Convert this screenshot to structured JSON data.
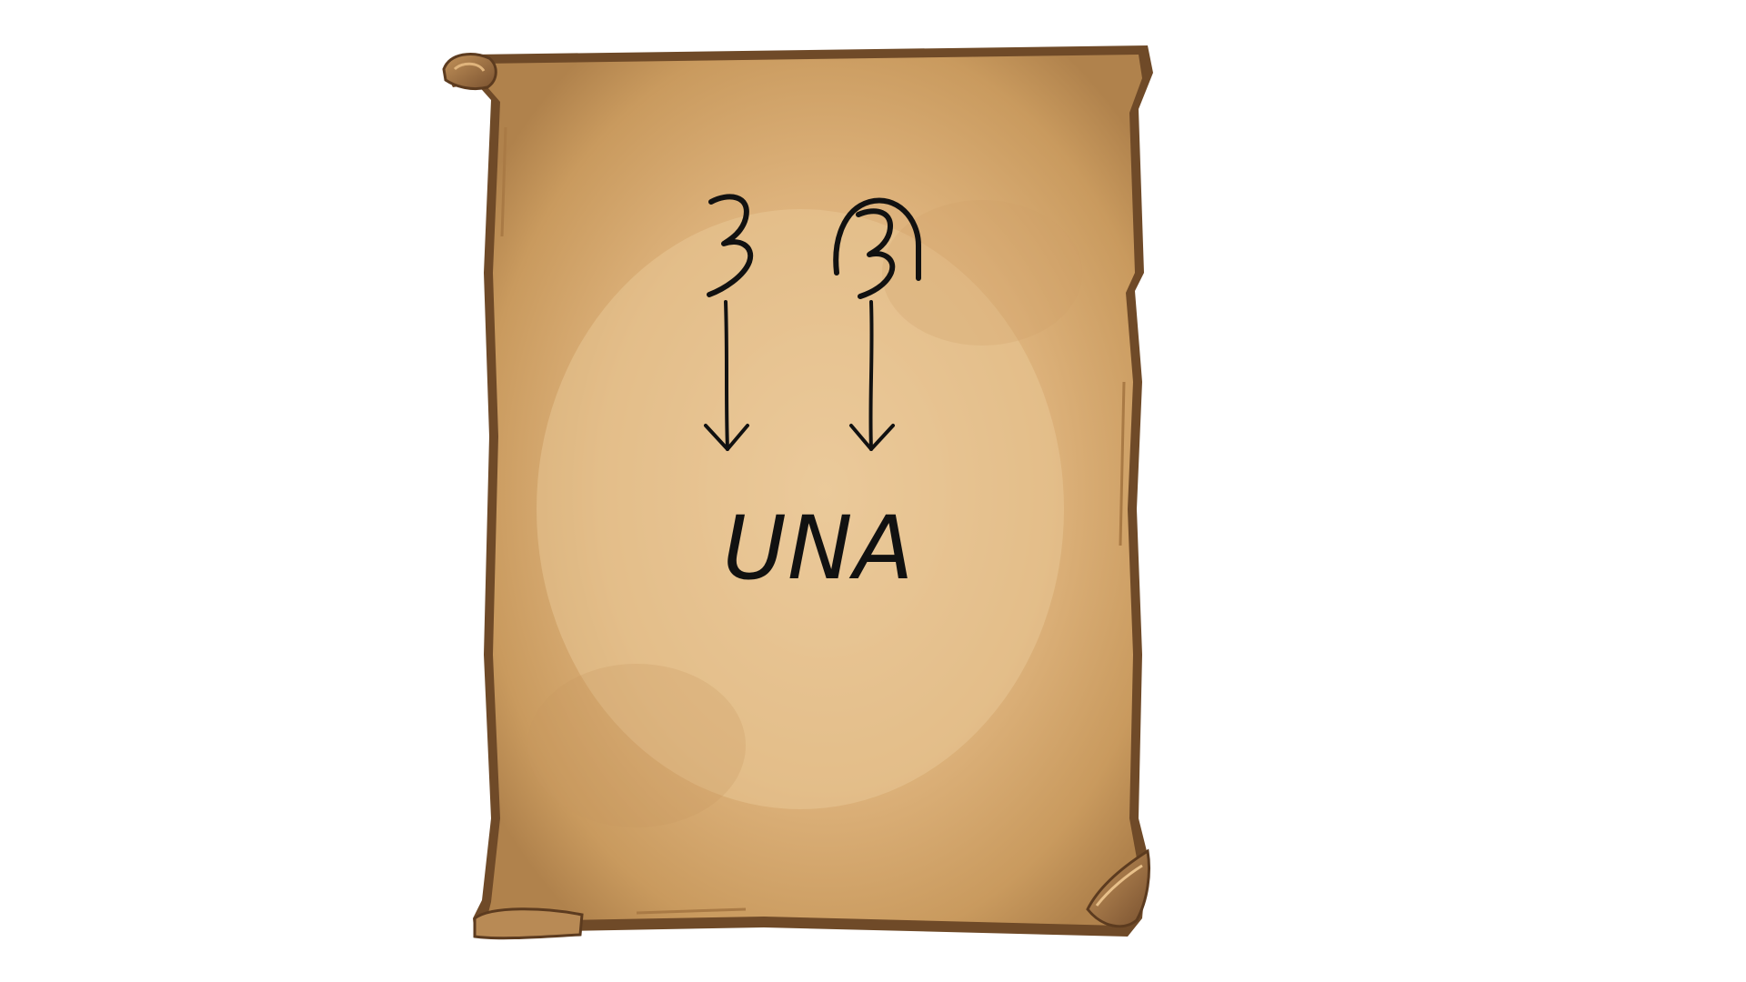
{
  "scroll": {
    "answer": "UNA"
  },
  "colors": {
    "background": "#ffffff",
    "parchment_light": "#e8c391",
    "parchment_mid": "#d8ad72",
    "parchment_dark": "#b98a52",
    "edge_dark": "#6f4a28",
    "edge_mid": "#9a6a3c",
    "ink": "#111111"
  },
  "icons": {
    "symbol_left": "handwritten-three-glyph",
    "symbol_right": "handwritten-three-in-arch-glyph",
    "arrow": "down-arrow"
  }
}
